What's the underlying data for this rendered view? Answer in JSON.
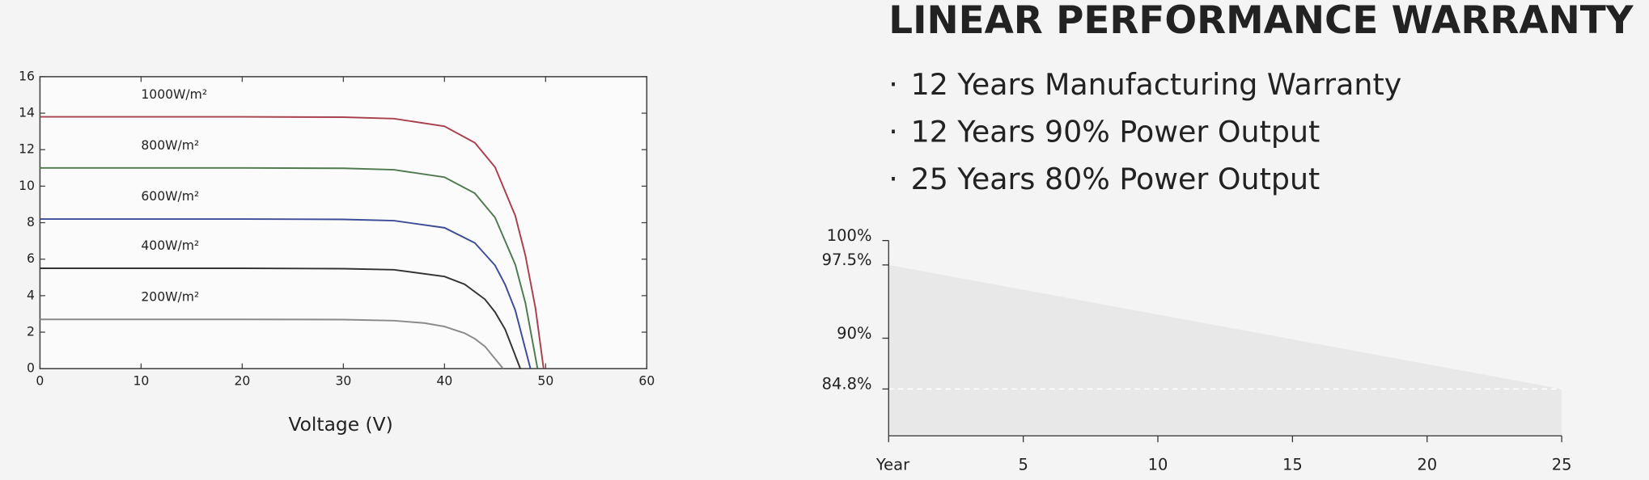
{
  "header": {
    "title": "LINEAR PERFORMANCE WARRANTY",
    "bullets": [
      "12 Years Manufacturing Warranty",
      "12 Years 90% Power Output",
      "25 Years 80% Power Output"
    ]
  },
  "chart_data": [
    {
      "type": "line",
      "x_label": "Voltage (V)",
      "xlim": [
        0,
        60
      ],
      "xticks": [
        0,
        10,
        20,
        30,
        40,
        50,
        60
      ],
      "ylim": [
        0,
        16
      ],
      "yticks": [
        0,
        2,
        4,
        6,
        8,
        10,
        12,
        14,
        16
      ],
      "series": [
        {
          "name": "1000W/m²",
          "color": "#a8404e",
          "x": [
            0,
            10,
            20,
            30,
            35,
            40,
            43,
            45,
            47,
            48,
            49,
            49.8
          ],
          "values": [
            13.8,
            13.8,
            13.8,
            13.78,
            13.7,
            13.28,
            12.38,
            11.04,
            8.38,
            6.2,
            3.3,
            0
          ]
        },
        {
          "name": "800W/m²",
          "color": "#4f7a4f",
          "x": [
            0,
            10,
            20,
            30,
            35,
            40,
            43,
            45,
            47,
            48,
            49.2
          ],
          "values": [
            11,
            11,
            11,
            10.98,
            10.9,
            10.49,
            9.61,
            8.28,
            5.7,
            3.6,
            0
          ]
        },
        {
          "name": "600W/m²",
          "color": "#3d4c98",
          "x": [
            0,
            10,
            20,
            30,
            35,
            40,
            43,
            45,
            46,
            47,
            48.5
          ],
          "values": [
            8.2,
            8.2,
            8.2,
            8.18,
            8.11,
            7.72,
            6.89,
            5.66,
            4.6,
            3.2,
            0
          ]
        },
        {
          "name": "400W/m²",
          "color": "#333333",
          "x": [
            0,
            10,
            20,
            30,
            35,
            40,
            42,
            44,
            45,
            46,
            47.5
          ],
          "values": [
            5.5,
            5.5,
            5.5,
            5.48,
            5.42,
            5.05,
            4.62,
            3.8,
            3.1,
            2.15,
            0
          ]
        },
        {
          "name": "200W/m²",
          "color": "#8a8a8a",
          "x": [
            0,
            10,
            20,
            30,
            35,
            38,
            40,
            42,
            43,
            44,
            45.8
          ],
          "values": [
            2.7,
            2.7,
            2.7,
            2.69,
            2.63,
            2.5,
            2.31,
            1.94,
            1.64,
            1.22,
            0
          ]
        }
      ]
    },
    {
      "type": "area",
      "color": "#e9e8e8",
      "x": [
        0,
        25
      ],
      "values": [
        97.5,
        84.8
      ],
      "xlim": [
        0,
        25
      ],
      "xticks": [
        {
          "value": 0,
          "label": "Year"
        },
        5,
        10,
        15,
        20,
        25
      ],
      "ylim": [
        80,
        100
      ],
      "yticks": [
        {
          "value": 100,
          "label": "100%"
        },
        {
          "value": 97.5,
          "label": "97.5%"
        },
        {
          "value": 90,
          "label": "90%"
        },
        {
          "value": 84.8,
          "label": "84.8%"
        }
      ],
      "hline": 84.8
    }
  ]
}
